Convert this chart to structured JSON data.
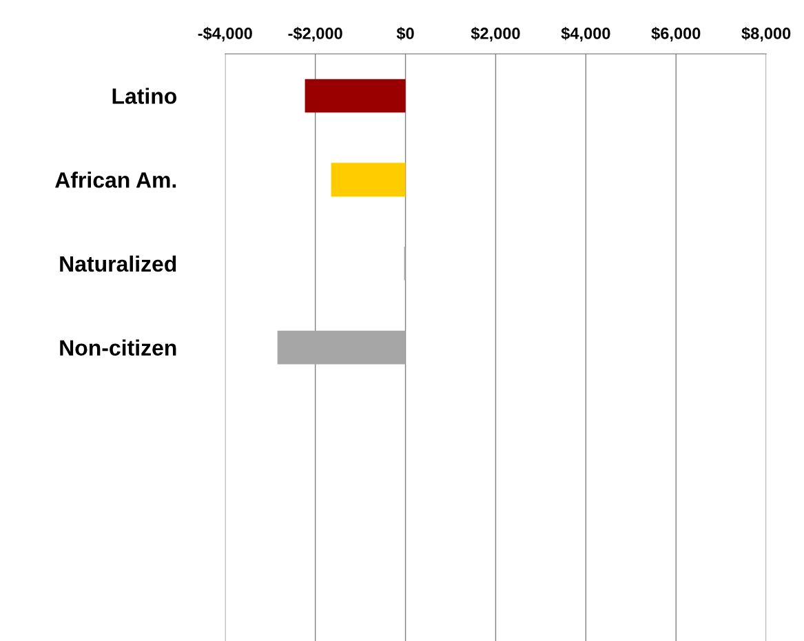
{
  "chart_data": {
    "type": "bar",
    "orientation": "horizontal",
    "categories": [
      "Latino",
      "African Am.",
      "Naturalized",
      "Non-citizen",
      null,
      null,
      null
    ],
    "values": [
      -2230,
      -1650,
      -30,
      -2840,
      null,
      null,
      null
    ],
    "colors": [
      "#990000",
      "#ffcc00",
      "#a6a6a6",
      "#a6a6a6",
      "#a6a6a6",
      "#a6a6a6",
      "#a6a6a6"
    ],
    "xlim": [
      -4000,
      8000
    ],
    "xticks": [
      {
        "value": -4000,
        "label": "-$4,000"
      },
      {
        "value": -2000,
        "label": "-$2,000"
      },
      {
        "value": 0,
        "label": "$0"
      },
      {
        "value": 2000,
        "label": "$2,000"
      },
      {
        "value": 4000,
        "label": "$4,000"
      },
      {
        "value": 6000,
        "label": "$6,000"
      },
      {
        "value": 8000,
        "label": "$8,000"
      }
    ],
    "grid": "x",
    "legend": false
  }
}
